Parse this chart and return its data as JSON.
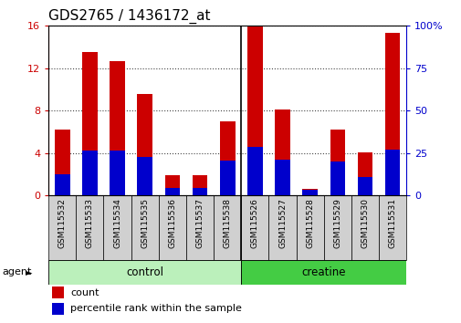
{
  "title": "GDS2765 / 1436172_at",
  "samples": [
    "GSM115532",
    "GSM115533",
    "GSM115534",
    "GSM115535",
    "GSM115536",
    "GSM115537",
    "GSM115538",
    "GSM115526",
    "GSM115527",
    "GSM115528",
    "GSM115529",
    "GSM115530",
    "GSM115531"
  ],
  "count_values": [
    6.2,
    13.5,
    12.7,
    9.6,
    1.9,
    1.9,
    7.0,
    16.0,
    8.1,
    0.6,
    6.2,
    4.1,
    15.3
  ],
  "percentile_values": [
    12.5,
    26.3,
    26.3,
    22.5,
    4.4,
    4.4,
    20.6,
    28.8,
    21.3,
    3.1,
    20.0,
    10.6,
    26.9
  ],
  "groups": [
    {
      "label": "control",
      "start": 0,
      "end": 6,
      "color": "#bbf0bb"
    },
    {
      "label": "creatine",
      "start": 7,
      "end": 12,
      "color": "#44cc44"
    }
  ],
  "bar_color": "#cc0000",
  "percentile_color": "#0000cc",
  "ylim_left": [
    0,
    16
  ],
  "ylim_right": [
    0,
    100
  ],
  "yticks_left": [
    0,
    4,
    8,
    12,
    16
  ],
  "yticks_right": [
    0,
    25,
    50,
    75,
    100
  ],
  "ytick_labels_right": [
    "0",
    "25",
    "50",
    "75",
    "100%"
  ],
  "bar_width": 0.55,
  "title_fontsize": 11,
  "agent_label": "agent",
  "legend_count_label": "count",
  "legend_percentile_label": "percentile rank within the sample",
  "separator_after_index": 6,
  "tick_bg_color": "#d0d0d0",
  "sample_fontsize": 6.5,
  "group_fontsize": 8.5,
  "legend_fontsize": 8,
  "ytick_fontsize": 8
}
